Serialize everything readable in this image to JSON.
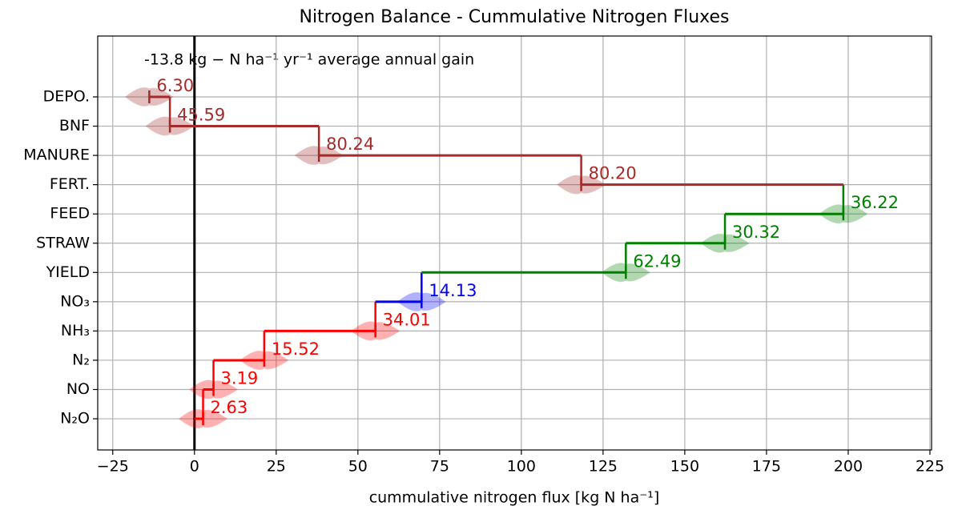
{
  "chart_data": {
    "type": "waterfall",
    "title": "Nitrogen Balance - Cummulative Nitrogen Fluxes",
    "annotation": "-13.8 kg − N ha⁻¹ yr⁻¹ average annual gain",
    "x_label": "cummulative nitrogen flux [kg N ha⁻¹]",
    "categories": [
      "DEPO.",
      "BNF",
      "MANURE",
      "FERT.",
      "FEED",
      "STRAW",
      "YIELD",
      "NO₃",
      "NH₃",
      "N₂",
      "NO",
      "N₂O"
    ],
    "values": [
      6.3,
      45.59,
      80.24,
      80.2,
      36.22,
      30.32,
      62.49,
      14.13,
      34.01,
      15.52,
      3.19,
      2.63
    ],
    "value_labels": [
      "6.30",
      "45.59",
      "80.24",
      "80.20",
      "36.22",
      "30.32",
      "62.49",
      "14.13",
      "34.01",
      "15.52",
      "3.19",
      "2.63"
    ],
    "directions": [
      -1,
      -1,
      -1,
      -1,
      1,
      1,
      1,
      1,
      1,
      1,
      1,
      1
    ],
    "colors": [
      "#a52a2a",
      "#a52a2a",
      "#a52a2a",
      "#a52a2a",
      "#008000",
      "#008000",
      "#008000",
      "#0000ff",
      "#ff0000",
      "#ff0000",
      "#ff0000",
      "#ff0000"
    ],
    "xlim": [
      -29.6,
      225.5
    ],
    "xticks": [
      {
        "value": -25,
        "label": "−25"
      },
      0,
      25,
      50,
      75,
      100,
      125,
      150,
      175,
      200,
      225
    ],
    "grid": true
  }
}
